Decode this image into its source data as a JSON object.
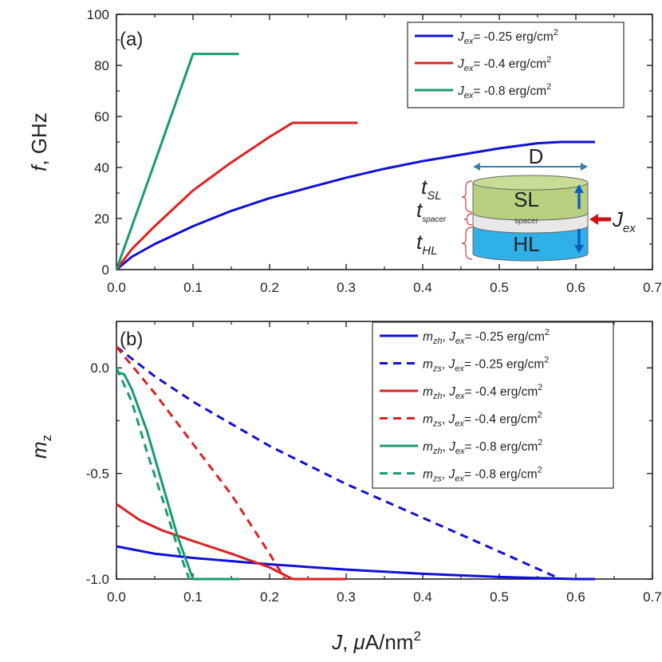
{
  "chart_data": [
    {
      "type": "line",
      "panel_label": "(a)",
      "xlabel": "",
      "ylabel": {
        "var": "f",
        "unit": ", GHz"
      },
      "xlim": [
        0,
        0.7
      ],
      "ylim": [
        0,
        100
      ],
      "xticks": [
        "0.0",
        "0.1",
        "0.2",
        "0.3",
        "0.4",
        "0.5",
        "0.6",
        "0.7"
      ],
      "yticks": [
        "0",
        "20",
        "40",
        "60",
        "80",
        "100"
      ],
      "series": [
        {
          "color": "#1010d8",
          "dash": false,
          "legend": {
            "sym": "J",
            "sub": "ex",
            "text": "= -0.25 erg/cm",
            "sup": "2"
          },
          "x": [
            0,
            0.02,
            0.05,
            0.1,
            0.15,
            0.2,
            0.25,
            0.3,
            0.35,
            0.4,
            0.45,
            0.5,
            0.55,
            0.58,
            0.6,
            0.625
          ],
          "y": [
            0,
            5,
            10,
            17,
            23,
            28,
            32,
            36,
            39.5,
            42.5,
            45,
            47.5,
            49.5,
            50,
            50,
            50
          ]
        },
        {
          "color": "#e02020",
          "dash": false,
          "legend": {
            "sym": "J",
            "sub": "ex",
            "text": "= -0.4 erg/cm",
            "sup": "2"
          },
          "x": [
            0,
            0.02,
            0.05,
            0.1,
            0.15,
            0.2,
            0.23,
            0.25,
            0.3,
            0.315
          ],
          "y": [
            0,
            8,
            17,
            31,
            42,
            52,
            57.5,
            57.5,
            57.5,
            57.5
          ]
        },
        {
          "color": "#1a9a70",
          "dash": false,
          "legend": {
            "sym": "J",
            "sub": "ex",
            "text": "= -0.8 erg/cm",
            "sup": "2"
          },
          "x": [
            0,
            0.05,
            0.1,
            0.13,
            0.16
          ],
          "y": [
            0,
            42,
            84.5,
            84.5,
            84.5
          ]
        }
      ],
      "inset": {
        "diameter_label": "D",
        "t_sl": {
          "main": "t",
          "sub": "SL"
        },
        "t_spacer": {
          "main": "t",
          "sub": "spacer"
        },
        "t_hl": {
          "main": "t",
          "sub": "HL"
        },
        "sl_label": "SL",
        "spacer_label": "spacer",
        "hl_label": "HL",
        "jex": {
          "main": "J",
          "sub": "ex"
        },
        "colors": {
          "sl": "#b8d080",
          "spacer": "#e8e8e8",
          "hl": "#30b0e8",
          "arrow_blue": "#1060c0",
          "arrow_red": "#d01010",
          "brace": "#d04040"
        }
      }
    },
    {
      "type": "line",
      "panel_label": "(b)",
      "xlabel": {
        "var": "J",
        "mu": "μ",
        "unit": "A/nm",
        "sup": "2"
      },
      "ylabel": {
        "var": "m",
        "sub": "z"
      },
      "xlim": [
        0,
        0.7
      ],
      "ylim": [
        -1.0,
        0.22
      ],
      "xticks": [
        "0.0",
        "0.1",
        "0.2",
        "0.3",
        "0.4",
        "0.5",
        "0.6",
        "0.7"
      ],
      "yticks": [
        "-1.0",
        "-0.5",
        "0.0"
      ],
      "series": [
        {
          "color": "#1010d8",
          "dash": false,
          "legend": {
            "sym": "m",
            "sub": "zh",
            "sym2": "J",
            "sub2": "ex",
            "text": "= -0.25 erg/cm",
            "sup": "2"
          },
          "x": [
            0,
            0.05,
            0.1,
            0.2,
            0.3,
            0.4,
            0.5,
            0.6,
            0.625
          ],
          "y": [
            -0.845,
            -0.88,
            -0.9,
            -0.93,
            -0.955,
            -0.975,
            -0.99,
            -1.0,
            -1.0
          ]
        },
        {
          "color": "#1010d8",
          "dash": true,
          "legend": {
            "sym": "m",
            "sub": "zs",
            "sym2": "J",
            "sub2": "ex",
            "text": "= -0.25 erg/cm",
            "sup": "2"
          },
          "x": [
            0,
            0.05,
            0.1,
            0.2,
            0.3,
            0.4,
            0.5,
            0.58
          ],
          "y": [
            0.1,
            -0.04,
            -0.16,
            -0.37,
            -0.55,
            -0.71,
            -0.87,
            -1.0
          ]
        },
        {
          "color": "#e02020",
          "dash": false,
          "legend": {
            "sym": "m",
            "sub": "zh",
            "sym2": "J",
            "sub2": "ex",
            "text": "= -0.4 erg/cm",
            "sup": "2"
          },
          "x": [
            0,
            0.03,
            0.06,
            0.1,
            0.15,
            0.2,
            0.23,
            0.26,
            0.3
          ],
          "y": [
            -0.645,
            -0.72,
            -0.77,
            -0.82,
            -0.88,
            -0.945,
            -1.0,
            -1.0,
            -1.0
          ]
        },
        {
          "color": "#e02020",
          "dash": true,
          "legend": {
            "sym": "m",
            "sub": "zs",
            "sym2": "J",
            "sub2": "ex",
            "text": "= -0.4 erg/cm",
            "sup": "2"
          },
          "x": [
            0,
            0.05,
            0.1,
            0.15,
            0.2,
            0.22
          ],
          "y": [
            0.1,
            -0.12,
            -0.36,
            -0.6,
            -0.88,
            -1.0
          ]
        },
        {
          "color": "#1a9a70",
          "dash": false,
          "legend": {
            "sym": "m",
            "sub": "zh",
            "sym2": "J",
            "sub2": "ex",
            "text": "= -0.8 erg/cm",
            "sup": "2"
          },
          "x": [
            0,
            0.01,
            0.02,
            0.04,
            0.06,
            0.08,
            0.1,
            0.13,
            0.16
          ],
          "y": [
            -0.02,
            -0.03,
            -0.1,
            -0.3,
            -0.55,
            -0.8,
            -1.0,
            -1.0,
            -1.0
          ]
        },
        {
          "color": "#1a9a70",
          "dash": true,
          "legend": {
            "sym": "m",
            "sub": "zs",
            "sym2": "J",
            "sub2": "ex",
            "text": "= -0.8 erg/cm",
            "sup": "2"
          },
          "x": [
            0,
            0.02,
            0.04,
            0.06,
            0.08,
            0.095
          ],
          "y": [
            0.0,
            -0.16,
            -0.4,
            -0.62,
            -0.85,
            -1.0
          ]
        }
      ]
    }
  ]
}
